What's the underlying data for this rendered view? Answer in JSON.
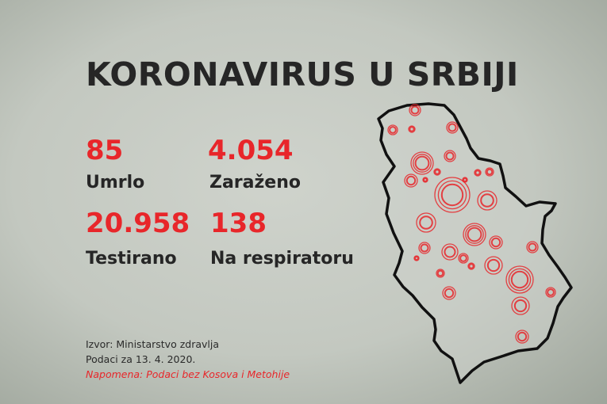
{
  "title": "KORONAVIRUS U SRBIJI",
  "stats": [
    {
      "value": "85",
      "label": "Umrlo"
    },
    {
      "value": "4.054",
      "label": "Zaraženo"
    },
    {
      "value": "20.958",
      "label": "Testirano"
    },
    {
      "value": "138",
      "label": "Na respiratoru"
    }
  ],
  "footer": {
    "source": "Izvor: Ministarstvo zdravlja",
    "date": "Podaci za 13. 4. 2020.",
    "note": "Napomena: Podaci bez Kosova i Metohije"
  },
  "colors": {
    "accent": "#e8262a",
    "text": "#262626",
    "map_outline": "#111111"
  }
}
